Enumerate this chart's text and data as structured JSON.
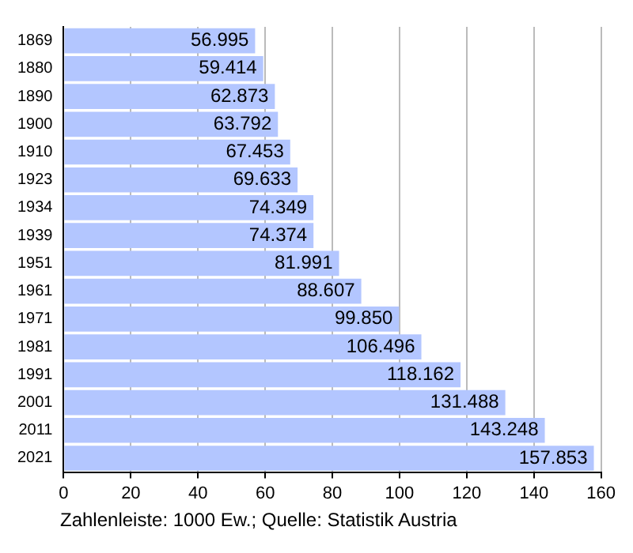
{
  "chart_data": {
    "type": "bar",
    "orientation": "horizontal",
    "categories": [
      "1869",
      "1880",
      "1890",
      "1900",
      "1910",
      "1923",
      "1934",
      "1939",
      "1951",
      "1961",
      "1971",
      "1981",
      "1991",
      "2001",
      "2011",
      "2021"
    ],
    "values": [
      56.995,
      59.414,
      62.873,
      63.792,
      67.453,
      69.633,
      74.349,
      74.374,
      81.991,
      88.607,
      99.85,
      106.496,
      118.162,
      131.488,
      143.248,
      157.853
    ],
    "value_labels": [
      "56.995",
      "59.414",
      "62.873",
      "63.792",
      "67.453",
      "69.633",
      "74.349",
      "74.374",
      "81.991",
      "88.607",
      "99.850",
      "106.496",
      "118.162",
      "131.488",
      "143.248",
      "157.853"
    ],
    "color": "#b3c6ff",
    "xlim": [
      0,
      160
    ],
    "xticks": [
      0,
      20,
      40,
      60,
      80,
      100,
      120,
      140,
      160
    ],
    "grid": "x",
    "annotations": [
      "Zahlenleiste: 1000 Ew.; Quelle: Statistik Austria"
    ]
  }
}
